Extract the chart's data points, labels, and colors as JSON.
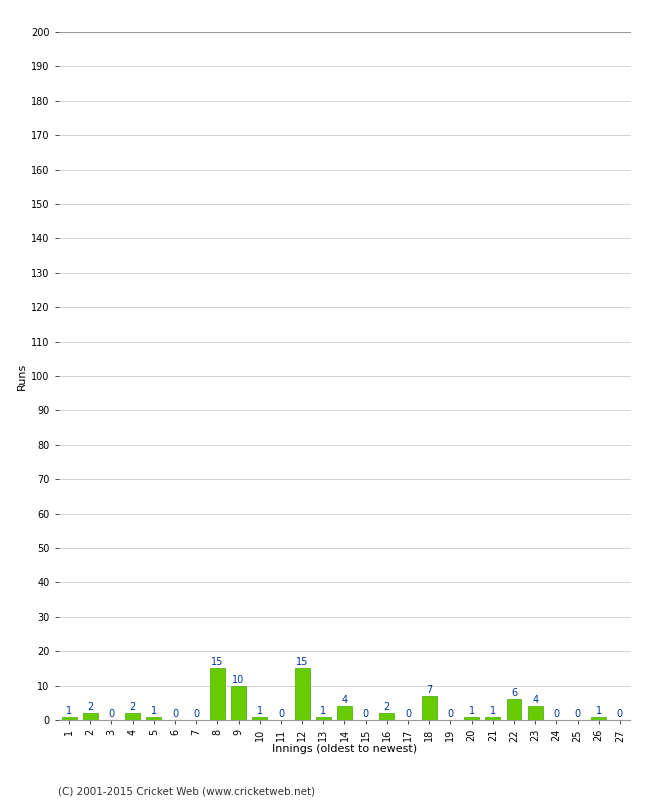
{
  "innings": [
    1,
    2,
    3,
    4,
    5,
    6,
    7,
    8,
    9,
    10,
    11,
    12,
    13,
    14,
    15,
    16,
    17,
    18,
    19,
    20,
    21,
    22,
    23,
    24,
    25,
    26,
    27
  ],
  "runs": [
    1,
    2,
    0,
    2,
    1,
    0,
    0,
    15,
    10,
    1,
    0,
    15,
    1,
    4,
    0,
    2,
    0,
    7,
    0,
    1,
    1,
    6,
    4,
    0,
    0,
    1,
    0
  ],
  "bar_color": "#66cc00",
  "bar_edge_color": "#44aa00",
  "annotation_color": "#003399",
  "ylabel": "Runs",
  "xlabel": "Innings (oldest to newest)",
  "ylim": [
    0,
    200
  ],
  "yticks": [
    0,
    10,
    20,
    30,
    40,
    50,
    60,
    70,
    80,
    90,
    100,
    110,
    120,
    130,
    140,
    150,
    160,
    170,
    180,
    190,
    200
  ],
  "grid_color": "#cccccc",
  "background_color": "#ffffff",
  "footer_text": "(C) 2001-2015 Cricket Web (www.cricketweb.net)",
  "label_fontsize": 8,
  "tick_fontsize": 7,
  "annotation_fontsize": 7,
  "footer_fontsize": 7.5
}
